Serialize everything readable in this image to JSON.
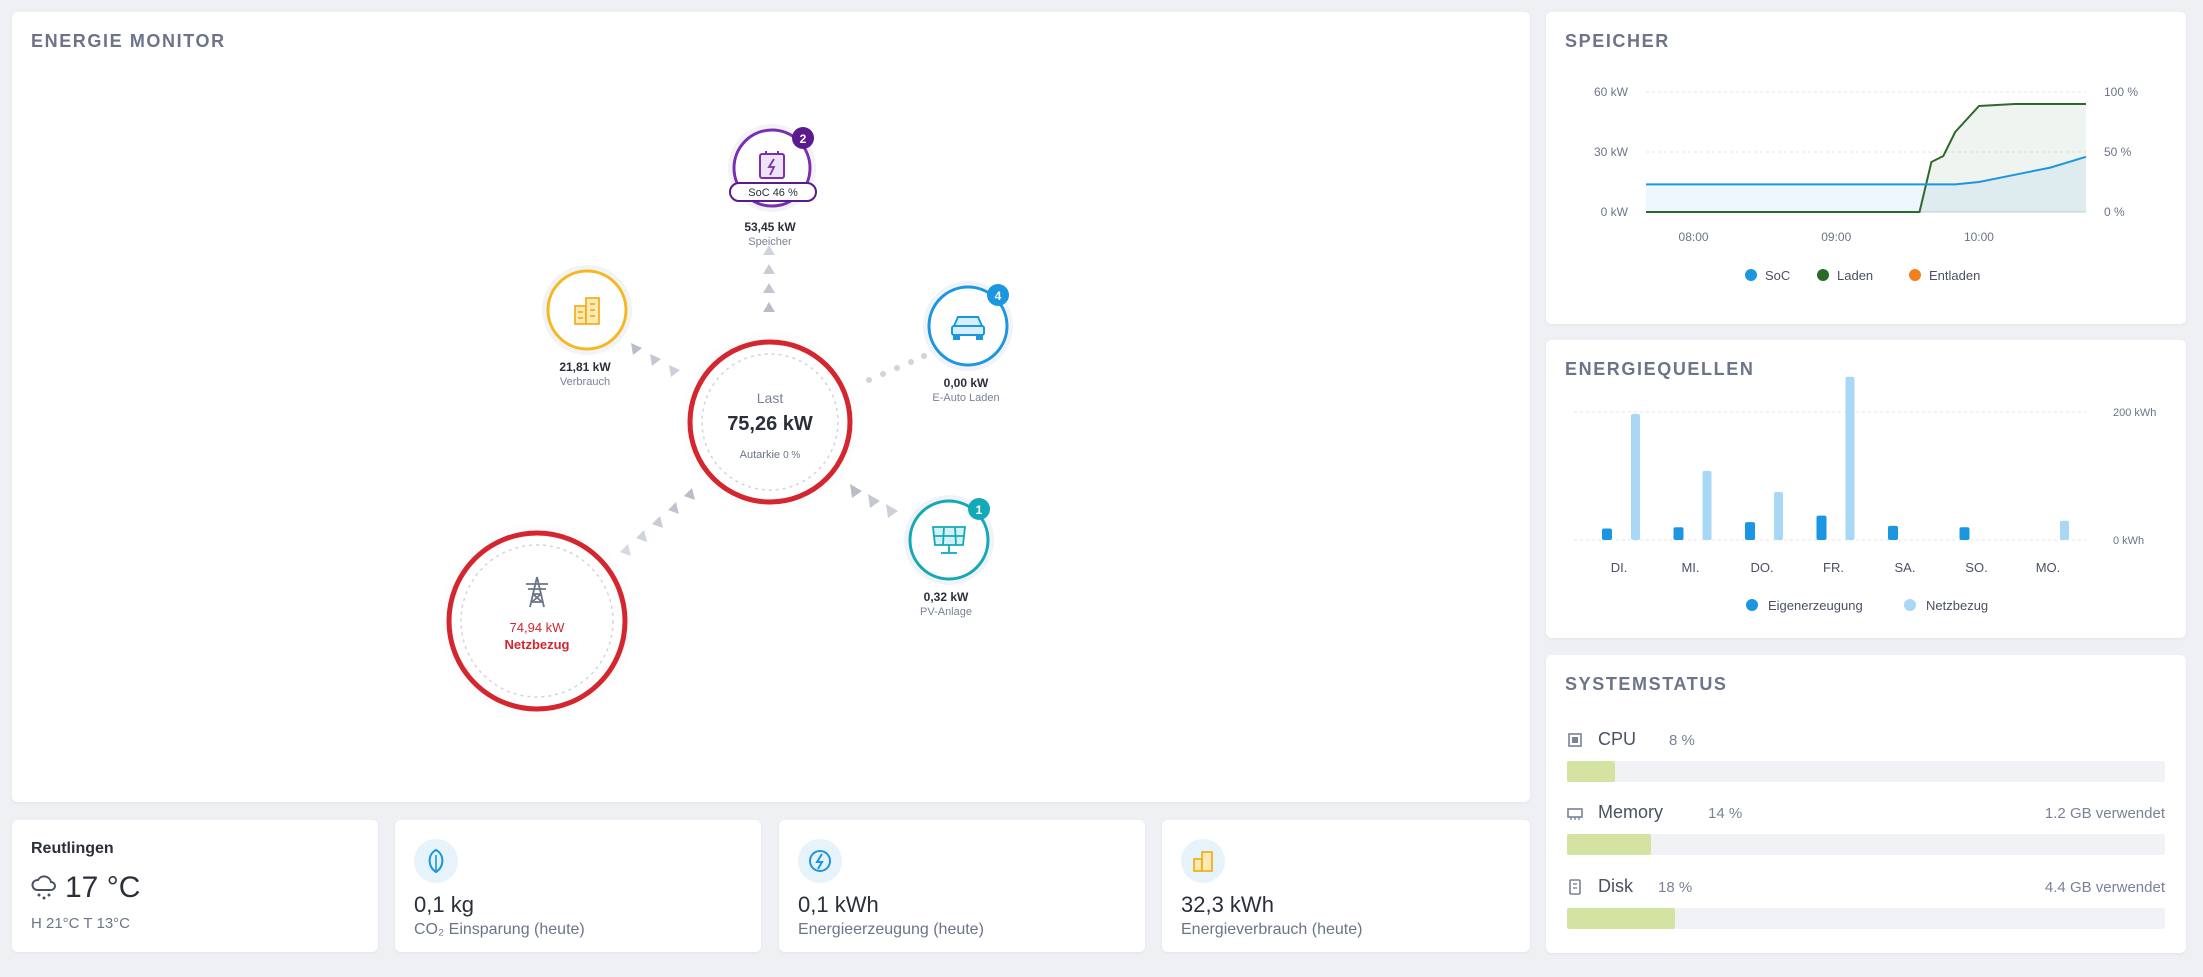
{
  "monitor": {
    "title": "ENERGIE MONITOR",
    "center": {
      "label": "Last",
      "value": "75,26 kW",
      "autarkie_label": "Autarkie",
      "autarkie_value": "0 %"
    },
    "speicher": {
      "soc_label": "SoC 46 %",
      "value": "53,45 kW",
      "label": "Speicher",
      "badge": "2",
      "icon": "battery-icon"
    },
    "verbrauch": {
      "value": "21,81 kW",
      "label": "Verbrauch",
      "icon": "building-icon"
    },
    "eauto": {
      "value": "0,00 kW",
      "label": "E-Auto Laden",
      "badge": "4",
      "icon": "car-icon"
    },
    "pv": {
      "value": "0,32 kW",
      "label": "PV-Anlage",
      "badge": "1",
      "icon": "solar-panel-icon"
    },
    "netz": {
      "value": "74,94 kW",
      "label": "Netzbezug",
      "icon": "power-pylon-icon"
    },
    "colors": {
      "red": "#d4262e",
      "purple": "#6a1fa0",
      "orange": "#f6b721",
      "blue": "#1b96e0",
      "teal": "#13aab8"
    }
  },
  "speicher_chart": {
    "title": "SPEICHER",
    "chart_data": {
      "type": "line",
      "x_labels": [
        "08:00",
        "09:00",
        "10:00"
      ],
      "y_left_ticks": [
        "60 kW",
        "30 kW",
        "0 kW"
      ],
      "y_right_ticks": [
        "100 %",
        "50 %",
        "0 %"
      ],
      "ylim_left": [
        0,
        60
      ],
      "ylim_right": [
        0,
        100
      ],
      "series": [
        {
          "name": "SoC",
          "color": "#1b96e0",
          "x": [
            "07:40",
            "08:00",
            "08:30",
            "09:00",
            "09:30",
            "09:50",
            "10:00",
            "10:15",
            "10:30",
            "10:45"
          ],
          "values": [
            23,
            23,
            23,
            23,
            23,
            23,
            25,
            31,
            37,
            46
          ]
        },
        {
          "name": "Laden",
          "color": "#2c6a2c",
          "x": [
            "07:40",
            "09:00",
            "09:30",
            "09:35",
            "09:40",
            "09:45",
            "09:50",
            "10:00",
            "10:15",
            "10:30",
            "10:45"
          ],
          "values": [
            0,
            0,
            0,
            0,
            25,
            28,
            40,
            53,
            54,
            54,
            54
          ]
        },
        {
          "name": "Entladen",
          "color": "#f2801f",
          "x": [],
          "values": []
        }
      ],
      "legend_position": "bottom"
    }
  },
  "quellen_chart": {
    "title": "ENERGIEQUELLEN",
    "chart_data": {
      "type": "bar",
      "categories": [
        "DI.",
        "MI.",
        "DO.",
        "FR.",
        "SA.",
        "SO.",
        "MO."
      ],
      "y_ticks": [
        "200 kWh",
        "0 kWh"
      ],
      "ylim": [
        0,
        250
      ],
      "series": [
        {
          "name": "Eigenerzeugung",
          "color": "#1b96e0",
          "values": [
            18,
            20,
            28,
            38,
            22,
            20,
            0
          ]
        },
        {
          "name": "Netzbezug",
          "color": "#a8d8f5",
          "values": [
            197,
            108,
            75,
            255,
            0,
            0,
            30
          ]
        }
      ],
      "legend_position": "bottom"
    }
  },
  "system": {
    "title": "SYSTEMSTATUS",
    "rows": [
      {
        "name": "CPU",
        "pct": "8 %",
        "fraction": 0.08,
        "right": "",
        "icon": "cpu-icon"
      },
      {
        "name": "Memory",
        "pct": "14 %",
        "fraction": 0.14,
        "right": "1.2 GB verwendet",
        "icon": "memory-icon"
      },
      {
        "name": "Disk",
        "pct": "18 %",
        "fraction": 0.18,
        "right": "4.4 GB verwendet",
        "icon": "disk-icon"
      }
    ]
  },
  "tiles": {
    "weather": {
      "city": "Reutlingen",
      "temp": "17 °C",
      "detail": "H 21°C T 13°C",
      "icon": "snow-cloud-icon"
    },
    "co2": {
      "value": "0,1 kg",
      "label": "CO₂ Einsparung (heute)",
      "icon": "leaf-icon"
    },
    "erzeugung": {
      "value": "0,1 kWh",
      "label": "Energieerzeugung (heute)",
      "icon": "bolt-icon"
    },
    "verbrauch": {
      "value": "32,3 kWh",
      "label": "Energieverbrauch (heute)",
      "icon": "building-icon"
    }
  }
}
